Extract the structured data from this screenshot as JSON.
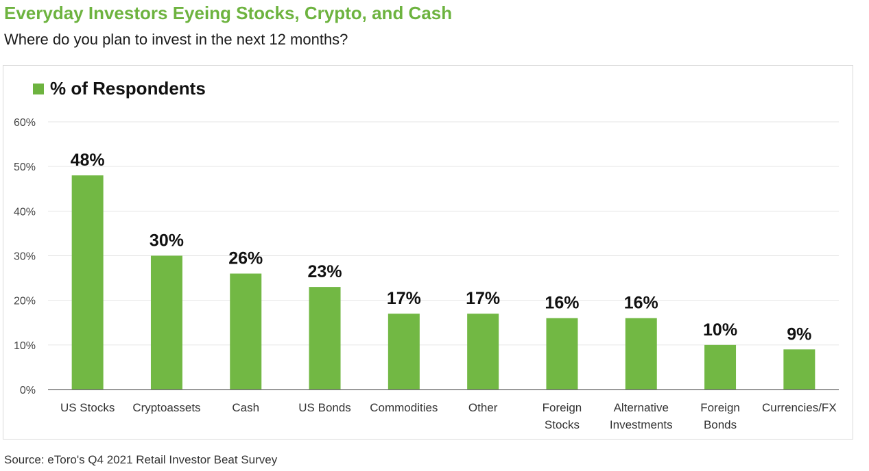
{
  "header": {
    "title": "Everyday Investors Eyeing Stocks, Crypto, and Cash",
    "subtitle": "Where do you plan to invest in the next 12 months?"
  },
  "footer": {
    "source": "Source: eToro's Q4 2021 Retail Investor Beat Survey"
  },
  "colors": {
    "accent": "#6db33f",
    "bar": "#72b844",
    "grid": "#e6e6e6",
    "axis": "#333333"
  },
  "chart_data": {
    "type": "bar",
    "title": "Everyday Investors Eyeing Stocks, Crypto, and Cash",
    "subtitle": "Where do you plan to invest in the next 12 months?",
    "categories": [
      [
        "US Stocks"
      ],
      [
        "Cryptoassets"
      ],
      [
        "Cash"
      ],
      [
        "US Bonds"
      ],
      [
        "Commodities"
      ],
      [
        "Other"
      ],
      [
        "Foreign",
        "Stocks"
      ],
      [
        "Alternative",
        "Investments"
      ],
      [
        "Foreign",
        "Bonds"
      ],
      [
        "Currencies/FX"
      ]
    ],
    "series": [
      {
        "name": "% of Respondents",
        "values": [
          48,
          30,
          26,
          23,
          17,
          17,
          16,
          16,
          10,
          9
        ]
      }
    ],
    "data_labels": [
      "48%",
      "30%",
      "26%",
      "23%",
      "17%",
      "17%",
      "16%",
      "16%",
      "10%",
      "9%"
    ],
    "yticks": [
      "0%",
      "10%",
      "20%",
      "30%",
      "40%",
      "50%",
      "60%"
    ],
    "ylim": [
      0,
      60
    ],
    "grid": true,
    "legend": "top-left"
  }
}
